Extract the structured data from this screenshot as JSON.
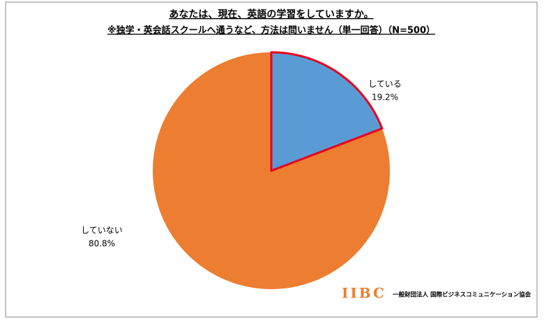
{
  "chart_data": {
    "type": "pie",
    "title": "あなたは、現在、英語の学習をしていますか。",
    "subtitle": "※独学・英会話スクールへ通うなど、方法は問いません（単一回答）（N=500）",
    "categories": [
      "している",
      "していない"
    ],
    "values": [
      19.2,
      80.8
    ],
    "value_labels": [
      "19.2%",
      "80.8%"
    ],
    "colors": [
      "#5b9bd5",
      "#ed7d31"
    ],
    "outline_color": "#e8001c",
    "logo": "IIBC",
    "logo_text": "一般財団法人 国際ビジネスコミュニケーション協会"
  }
}
